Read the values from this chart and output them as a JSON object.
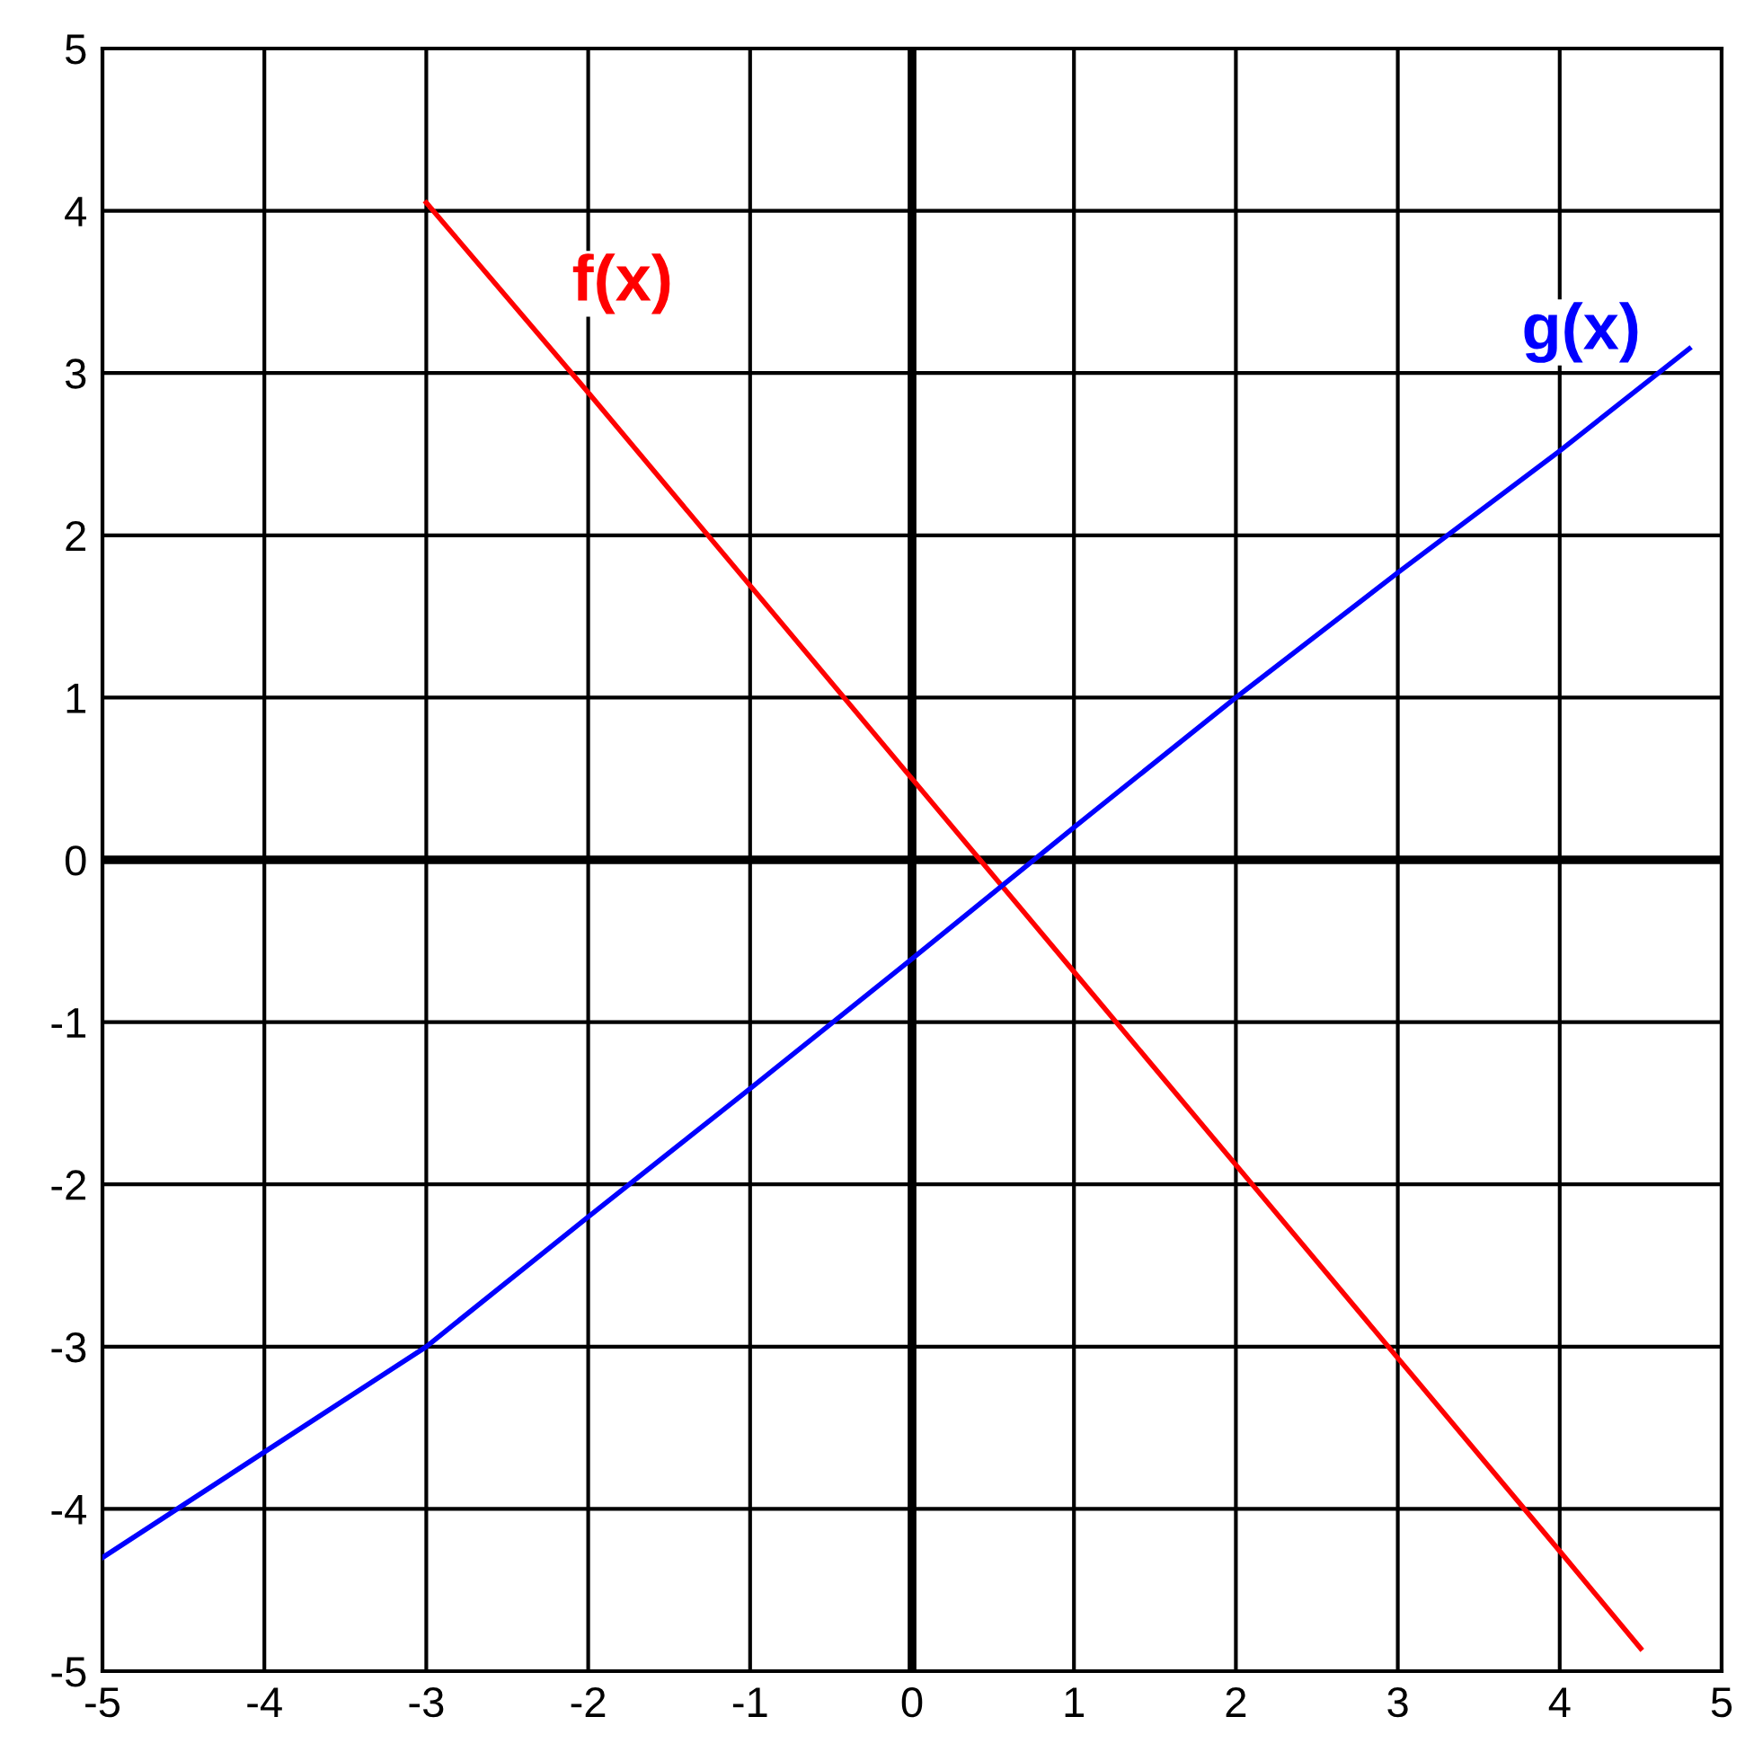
{
  "chart_data": {
    "type": "line",
    "series": [
      {
        "name": "f(x)",
        "color": "#ff0000",
        "x": [
          -3,
          -2,
          -1,
          0,
          1,
          2,
          3,
          4,
          4.5
        ],
        "values": [
          4.05,
          2.88,
          1.69,
          0.5,
          -0.69,
          -1.88,
          -3.07,
          -4.26,
          -4.86
        ]
      },
      {
        "name": "g(x)",
        "color": "#0000ff",
        "x": [
          -5,
          -4,
          -3,
          -2,
          -1,
          0,
          1,
          2,
          3,
          4,
          4.8
        ],
        "values": [
          -4.3,
          -3.65,
          -3.0,
          -2.2,
          -1.41,
          -0.61,
          0.2,
          1.0,
          1.77,
          2.52,
          3.15
        ]
      }
    ],
    "xlim": [
      -5,
      5
    ],
    "ylim": [
      -5,
      5
    ],
    "xticks": [
      -5,
      -4,
      -3,
      -2,
      -1,
      0,
      1,
      2,
      3,
      4,
      5
    ],
    "yticks": [
      -5,
      -4,
      -3,
      -2,
      -1,
      0,
      1,
      2,
      3,
      4,
      5
    ],
    "grid": true,
    "legend": false
  }
}
